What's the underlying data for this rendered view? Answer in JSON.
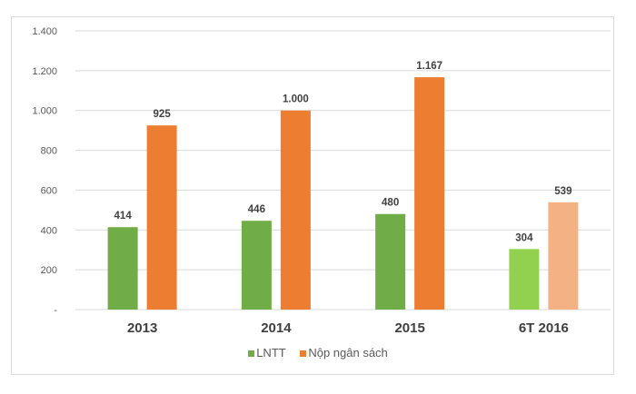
{
  "chart_data": {
    "type": "bar",
    "title": "",
    "xlabel": "",
    "ylabel": "",
    "categories": [
      "2013",
      "2014",
      "2015",
      "6T 2016"
    ],
    "series": [
      {
        "name": "LNTT",
        "values": [
          414,
          446,
          480,
          304
        ],
        "labels": [
          "414",
          "446",
          "480",
          "304"
        ],
        "color": "#70AD47",
        "highlight_color": "#92D050"
      },
      {
        "name": "Nộp ngân sách",
        "values": [
          925,
          1000,
          1167,
          539
        ],
        "labels": [
          "925",
          "1.000",
          "1.167",
          "539"
        ],
        "color": "#ED7D31",
        "highlight_color": "#F4B183"
      }
    ],
    "highlighted_category": "6T 2016",
    "ylim": [
      0,
      1400
    ],
    "yticks": [
      0,
      200,
      400,
      600,
      800,
      1000,
      1200,
      1400
    ],
    "ytick_labels": [
      "-",
      "200",
      "400",
      "600",
      "800",
      "1.000",
      "1.200",
      "1.400"
    ],
    "grid": true,
    "legend_position": "bottom"
  }
}
